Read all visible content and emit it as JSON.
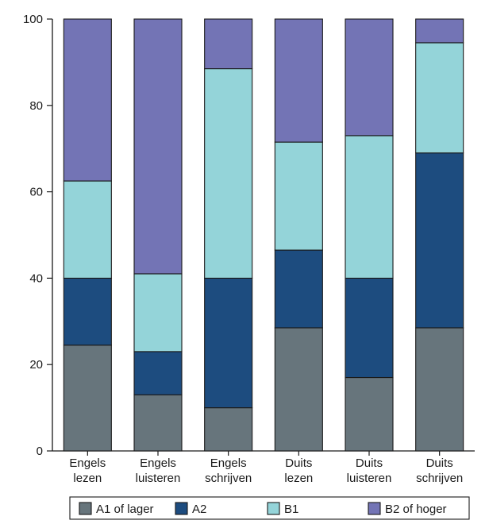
{
  "chart_data": {
    "type": "bar",
    "stacked": true,
    "categories": [
      [
        "Engels",
        "lezen"
      ],
      [
        "Engels",
        "luisteren"
      ],
      [
        "Engels",
        "schrijven"
      ],
      [
        "Duits",
        "lezen"
      ],
      [
        "Duits",
        "luisteren"
      ],
      [
        "Duits",
        "schrijven"
      ]
    ],
    "series": [
      {
        "name": "A1 of lager",
        "color": "#67757c",
        "values": [
          24.5,
          13,
          10,
          28.5,
          17,
          28.5
        ]
      },
      {
        "name": "A2",
        "color": "#1d4c7f",
        "values": [
          15.5,
          10,
          30,
          18,
          23,
          40.5
        ]
      },
      {
        "name": "B1",
        "color": "#94d4d9",
        "values": [
          22.5,
          18,
          48.5,
          25,
          33,
          25.5
        ]
      },
      {
        "name": "B2 of hoger",
        "color": "#7374b5",
        "values": [
          37.5,
          59,
          11.5,
          28.5,
          27,
          5.5
        ]
      }
    ],
    "ylim": [
      0,
      100
    ],
    "yticks": [
      0,
      20,
      40,
      60,
      80,
      100
    ],
    "legend_position": "bottom",
    "grid": false
  }
}
